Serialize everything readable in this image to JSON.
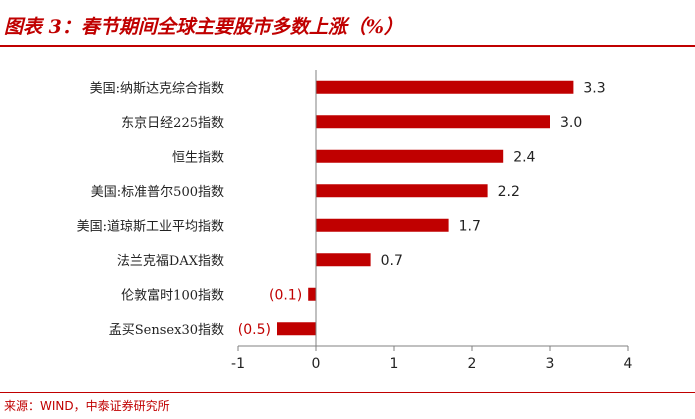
{
  "header": {
    "title": "图表 3：春节期间全球主要股市多数上涨（%）"
  },
  "footer": {
    "source": "来源：WIND，中泰证券研究所"
  },
  "colors": {
    "accent": "#c00000",
    "bar": "#c00000",
    "negative_label": "#c00000",
    "text": "#222222"
  },
  "chart_data": {
    "type": "bar",
    "orientation": "horizontal",
    "categories": [
      "美国:纳斯达克综合指数",
      "东京日经225指数",
      "恒生指数",
      "美国:标准普尔500指数",
      "美国:道琼斯工业平均指数",
      "法兰克福DAX指数",
      "伦敦富时100指数",
      "孟买Sensex30指数"
    ],
    "values": [
      3.3,
      3.0,
      2.4,
      2.2,
      1.7,
      0.7,
      -0.1,
      -0.5
    ],
    "value_labels": [
      "3.3",
      "3.0",
      "2.4",
      "2.2",
      "1.7",
      "0.7",
      "(0.1)",
      "(0.5)"
    ],
    "xlim": [
      -1,
      4
    ],
    "xticks": [
      "-1",
      "0",
      "1",
      "2",
      "3",
      "4"
    ],
    "grid": false,
    "legend": "none"
  }
}
